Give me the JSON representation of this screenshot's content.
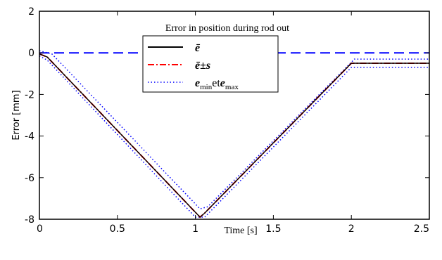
{
  "chart_data": {
    "type": "line",
    "title": "Error in position during rod out",
    "xlabel": "Time [s]",
    "ylabel": "Error [mm]",
    "xlim": [
      0,
      2.5
    ],
    "ylim": [
      -8,
      2
    ],
    "xticks": [
      "0",
      "0.5",
      "1",
      "1.5",
      "2",
      "2.5"
    ],
    "yticks": [
      "2",
      "0",
      "-2",
      "-4",
      "-6",
      "-8"
    ],
    "grid": false,
    "legend_position": "top-center",
    "legend": {
      "items": [
        "ē",
        "ē±s",
        "e_min et e_max"
      ],
      "item3": {
        "a": "e",
        "a_sub": "min",
        "mid": "et",
        "b": "e",
        "b_sub": "max"
      }
    },
    "reference_line": {
      "y": 0,
      "color": "#0000ff",
      "style": "dashed"
    },
    "series": [
      {
        "color": "#000000",
        "style": "solid",
        "x": [
          0.0,
          0.05,
          1.03,
          1.06,
          2.0,
          2.5
        ],
        "y": [
          -0.05,
          -0.2,
          -7.9,
          -7.7,
          -0.5,
          -0.5
        ]
      },
      {
        "color": "#ff0000",
        "style": "dashdot",
        "x": [
          0.0,
          0.05,
          1.03,
          1.06,
          2.0,
          2.5
        ],
        "y": [
          -0.05,
          -0.2,
          -7.9,
          -7.7,
          -0.5,
          -0.5
        ]
      },
      {
        "color": "#0000ff",
        "style": "dotted",
        "x": [
          0.0,
          0.05,
          1.0,
          1.06,
          2.0,
          2.5
        ],
        "y": [
          -0.15,
          -0.35,
          -7.9,
          -7.9,
          -0.7,
          -0.7
        ]
      },
      {
        "color": "#0000ff",
        "style": "dotted",
        "x": [
          0.0,
          0.08,
          1.03,
          1.08,
          2.02,
          2.5
        ],
        "y": [
          0.1,
          -0.05,
          -7.5,
          -7.4,
          -0.3,
          -0.3
        ]
      }
    ]
  }
}
